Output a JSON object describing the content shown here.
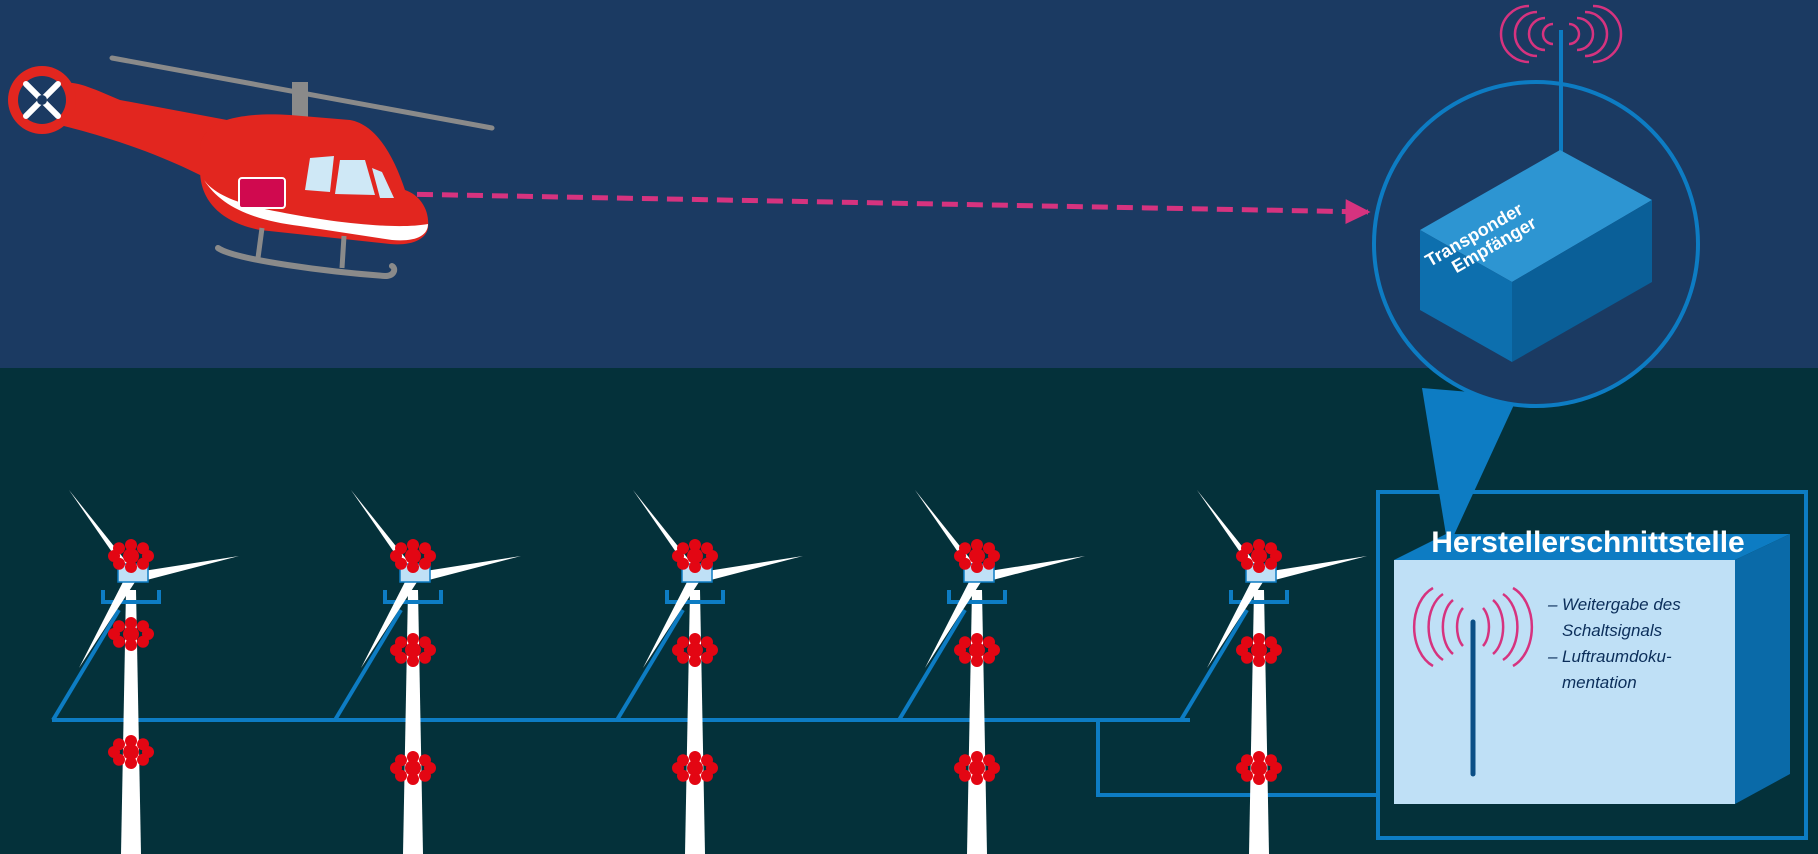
{
  "colors": {
    "sky": "#1b3a62",
    "ground": "#04313a",
    "accent_blue": "#0d7cc3",
    "box_light": "#bfe0f6",
    "signal_magenta": "#d6337f",
    "heli_red": "#e2261f",
    "beacon_red": "#e30613",
    "blade_white": "#ffffff"
  },
  "transponder": {
    "line1": "Transponder",
    "line2": "Empfänger"
  },
  "interface": {
    "title": "Herstellerschnittstelle",
    "bullets": [
      "Weitergabe des",
      "Schaltsignals",
      "Luftraumdoku-",
      "mentation"
    ],
    "bullet_mark": "–"
  },
  "icons": {
    "aircraft": "helicopter-icon",
    "antenna": "antenna-signal-icon",
    "turbine": "wind-turbine-icon",
    "beacon": "obstruction-light-icon"
  },
  "turbine_count": 5
}
